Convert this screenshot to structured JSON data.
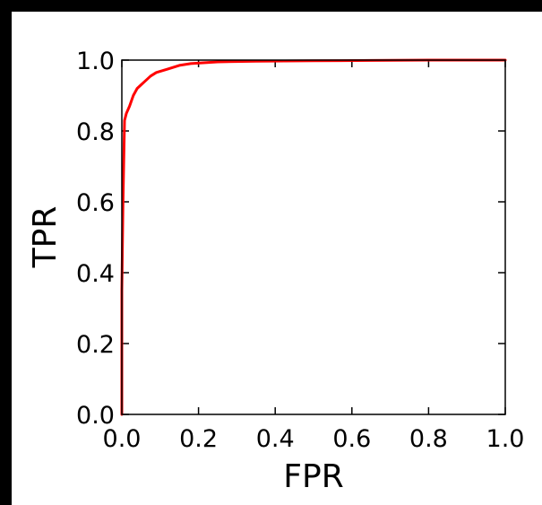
{
  "chart_data": {
    "type": "line",
    "xlabel": "FPR",
    "ylabel": "TPR",
    "xlim": [
      0.0,
      1.0
    ],
    "ylim": [
      0.0,
      1.0
    ],
    "xticks": [
      "0.0",
      "0.2",
      "0.4",
      "0.6",
      "0.8",
      "1.0"
    ],
    "yticks": [
      "0.0",
      "0.2",
      "0.4",
      "0.6",
      "0.8",
      "1.0"
    ],
    "grid": false,
    "series": [
      {
        "color": "#ff0000",
        "x": [
          0.0,
          0.0,
          0.003,
          0.007,
          0.012,
          0.02,
          0.03,
          0.04,
          0.05,
          0.06,
          0.075,
          0.09,
          0.12,
          0.15,
          0.18,
          0.25,
          0.35,
          0.5,
          0.65,
          0.8,
          1.0
        ],
        "y": [
          0.0,
          0.35,
          0.6,
          0.83,
          0.85,
          0.87,
          0.9,
          0.92,
          0.93,
          0.94,
          0.955,
          0.965,
          0.975,
          0.985,
          0.99,
          0.995,
          0.997,
          0.998,
          0.999,
          1.0,
          1.0
        ]
      }
    ]
  }
}
